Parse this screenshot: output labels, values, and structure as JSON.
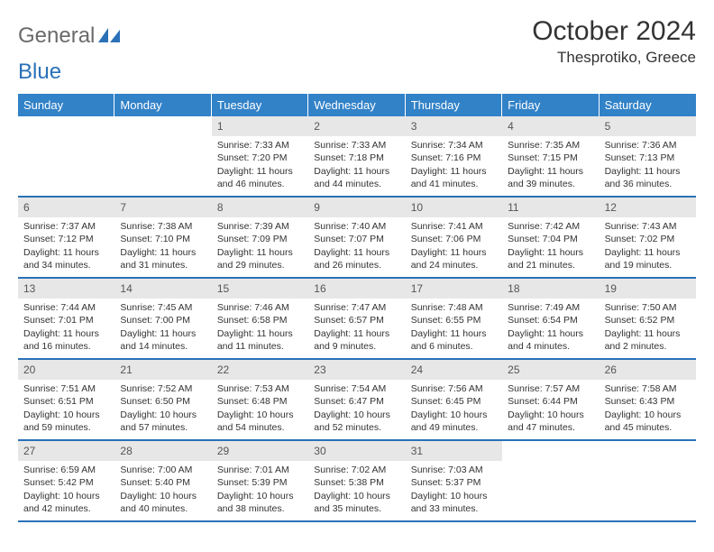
{
  "colors": {
    "header_bar": "#3282c8",
    "header_text": "#ffffff",
    "daynum_bg": "#e7e7e7",
    "daynum_text": "#555555",
    "rule": "#2a71b8",
    "body_text": "#333333",
    "logo_gray": "#6a6a6a",
    "logo_blue": "#2a71b8",
    "page_bg": "#ffffff"
  },
  "logo": {
    "part1": "General",
    "part2": "Blue"
  },
  "title": "October 2024",
  "location": "Thesprotiko, Greece",
  "weekdays": [
    "Sunday",
    "Monday",
    "Tuesday",
    "Wednesday",
    "Thursday",
    "Friday",
    "Saturday"
  ],
  "weeks": [
    [
      null,
      null,
      {
        "n": "1",
        "sunrise": "Sunrise: 7:33 AM",
        "sunset": "Sunset: 7:20 PM",
        "daylight": "Daylight: 11 hours and 46 minutes."
      },
      {
        "n": "2",
        "sunrise": "Sunrise: 7:33 AM",
        "sunset": "Sunset: 7:18 PM",
        "daylight": "Daylight: 11 hours and 44 minutes."
      },
      {
        "n": "3",
        "sunrise": "Sunrise: 7:34 AM",
        "sunset": "Sunset: 7:16 PM",
        "daylight": "Daylight: 11 hours and 41 minutes."
      },
      {
        "n": "4",
        "sunrise": "Sunrise: 7:35 AM",
        "sunset": "Sunset: 7:15 PM",
        "daylight": "Daylight: 11 hours and 39 minutes."
      },
      {
        "n": "5",
        "sunrise": "Sunrise: 7:36 AM",
        "sunset": "Sunset: 7:13 PM",
        "daylight": "Daylight: 11 hours and 36 minutes."
      }
    ],
    [
      {
        "n": "6",
        "sunrise": "Sunrise: 7:37 AM",
        "sunset": "Sunset: 7:12 PM",
        "daylight": "Daylight: 11 hours and 34 minutes."
      },
      {
        "n": "7",
        "sunrise": "Sunrise: 7:38 AM",
        "sunset": "Sunset: 7:10 PM",
        "daylight": "Daylight: 11 hours and 31 minutes."
      },
      {
        "n": "8",
        "sunrise": "Sunrise: 7:39 AM",
        "sunset": "Sunset: 7:09 PM",
        "daylight": "Daylight: 11 hours and 29 minutes."
      },
      {
        "n": "9",
        "sunrise": "Sunrise: 7:40 AM",
        "sunset": "Sunset: 7:07 PM",
        "daylight": "Daylight: 11 hours and 26 minutes."
      },
      {
        "n": "10",
        "sunrise": "Sunrise: 7:41 AM",
        "sunset": "Sunset: 7:06 PM",
        "daylight": "Daylight: 11 hours and 24 minutes."
      },
      {
        "n": "11",
        "sunrise": "Sunrise: 7:42 AM",
        "sunset": "Sunset: 7:04 PM",
        "daylight": "Daylight: 11 hours and 21 minutes."
      },
      {
        "n": "12",
        "sunrise": "Sunrise: 7:43 AM",
        "sunset": "Sunset: 7:02 PM",
        "daylight": "Daylight: 11 hours and 19 minutes."
      }
    ],
    [
      {
        "n": "13",
        "sunrise": "Sunrise: 7:44 AM",
        "sunset": "Sunset: 7:01 PM",
        "daylight": "Daylight: 11 hours and 16 minutes."
      },
      {
        "n": "14",
        "sunrise": "Sunrise: 7:45 AM",
        "sunset": "Sunset: 7:00 PM",
        "daylight": "Daylight: 11 hours and 14 minutes."
      },
      {
        "n": "15",
        "sunrise": "Sunrise: 7:46 AM",
        "sunset": "Sunset: 6:58 PM",
        "daylight": "Daylight: 11 hours and 11 minutes."
      },
      {
        "n": "16",
        "sunrise": "Sunrise: 7:47 AM",
        "sunset": "Sunset: 6:57 PM",
        "daylight": "Daylight: 11 hours and 9 minutes."
      },
      {
        "n": "17",
        "sunrise": "Sunrise: 7:48 AM",
        "sunset": "Sunset: 6:55 PM",
        "daylight": "Daylight: 11 hours and 6 minutes."
      },
      {
        "n": "18",
        "sunrise": "Sunrise: 7:49 AM",
        "sunset": "Sunset: 6:54 PM",
        "daylight": "Daylight: 11 hours and 4 minutes."
      },
      {
        "n": "19",
        "sunrise": "Sunrise: 7:50 AM",
        "sunset": "Sunset: 6:52 PM",
        "daylight": "Daylight: 11 hours and 2 minutes."
      }
    ],
    [
      {
        "n": "20",
        "sunrise": "Sunrise: 7:51 AM",
        "sunset": "Sunset: 6:51 PM",
        "daylight": "Daylight: 10 hours and 59 minutes."
      },
      {
        "n": "21",
        "sunrise": "Sunrise: 7:52 AM",
        "sunset": "Sunset: 6:50 PM",
        "daylight": "Daylight: 10 hours and 57 minutes."
      },
      {
        "n": "22",
        "sunrise": "Sunrise: 7:53 AM",
        "sunset": "Sunset: 6:48 PM",
        "daylight": "Daylight: 10 hours and 54 minutes."
      },
      {
        "n": "23",
        "sunrise": "Sunrise: 7:54 AM",
        "sunset": "Sunset: 6:47 PM",
        "daylight": "Daylight: 10 hours and 52 minutes."
      },
      {
        "n": "24",
        "sunrise": "Sunrise: 7:56 AM",
        "sunset": "Sunset: 6:45 PM",
        "daylight": "Daylight: 10 hours and 49 minutes."
      },
      {
        "n": "25",
        "sunrise": "Sunrise: 7:57 AM",
        "sunset": "Sunset: 6:44 PM",
        "daylight": "Daylight: 10 hours and 47 minutes."
      },
      {
        "n": "26",
        "sunrise": "Sunrise: 7:58 AM",
        "sunset": "Sunset: 6:43 PM",
        "daylight": "Daylight: 10 hours and 45 minutes."
      }
    ],
    [
      {
        "n": "27",
        "sunrise": "Sunrise: 6:59 AM",
        "sunset": "Sunset: 5:42 PM",
        "daylight": "Daylight: 10 hours and 42 minutes."
      },
      {
        "n": "28",
        "sunrise": "Sunrise: 7:00 AM",
        "sunset": "Sunset: 5:40 PM",
        "daylight": "Daylight: 10 hours and 40 minutes."
      },
      {
        "n": "29",
        "sunrise": "Sunrise: 7:01 AM",
        "sunset": "Sunset: 5:39 PM",
        "daylight": "Daylight: 10 hours and 38 minutes."
      },
      {
        "n": "30",
        "sunrise": "Sunrise: 7:02 AM",
        "sunset": "Sunset: 5:38 PM",
        "daylight": "Daylight: 10 hours and 35 minutes."
      },
      {
        "n": "31",
        "sunrise": "Sunrise: 7:03 AM",
        "sunset": "Sunset: 5:37 PM",
        "daylight": "Daylight: 10 hours and 33 minutes."
      },
      null,
      null
    ]
  ]
}
